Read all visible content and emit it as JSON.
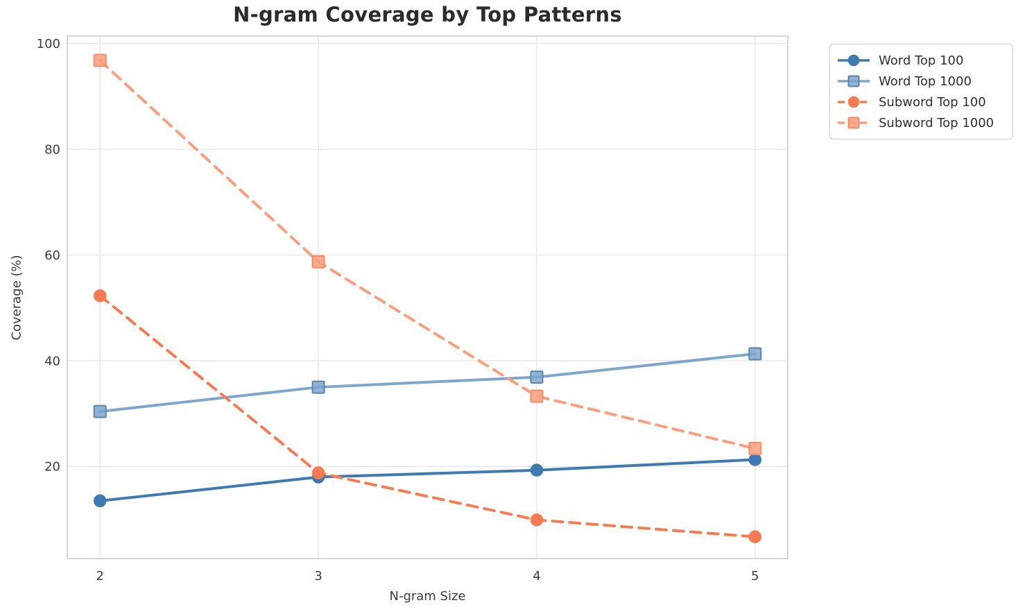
{
  "page": {
    "title": "N-gram Coverage by Top Patterns"
  },
  "chart_data": {
    "type": "line",
    "title": "N-gram Coverage by Top Patterns",
    "xlabel": "N-gram Size",
    "ylabel": "Coverage (%)",
    "x": [
      2,
      3,
      4,
      5
    ],
    "x_tick_labels": [
      "2",
      "3",
      "4",
      "5"
    ],
    "y_ticks": [
      20,
      40,
      60,
      80,
      100
    ],
    "xlim": [
      1.85,
      5.15
    ],
    "ylim": [
      2.6,
      101.4
    ],
    "grid": true,
    "legend_position": "upper-right-outside",
    "series": [
      {
        "name": "Word Top 100",
        "values": [
          13.5,
          18.0,
          19.3,
          21.3
        ],
        "color": "#3e7ab1",
        "line_style": "solid",
        "marker": "circle",
        "marker_edge": "#3e7ab1"
      },
      {
        "name": "Word Top 1000",
        "values": [
          30.4,
          35.0,
          36.9,
          41.3
        ],
        "color": "#7ea6cd",
        "line_style": "solid",
        "marker": "square",
        "marker_edge": "#5884ae"
      },
      {
        "name": "Subword Top 100",
        "values": [
          52.3,
          18.8,
          9.9,
          6.7
        ],
        "color": "#f87a50",
        "line_style": "dashed",
        "marker": "circle",
        "marker_edge": "#f87a50"
      },
      {
        "name": "Subword Top 1000",
        "values": [
          96.8,
          58.7,
          33.3,
          23.4
        ],
        "color": "#fa9e7d",
        "line_style": "dashed",
        "marker": "square",
        "marker_edge": "#f88b62"
      }
    ]
  },
  "colors": {
    "background": "#ffffff",
    "grid": "#e7e7ea",
    "spine": "#cccccf",
    "tick_text": "#3c3c3c",
    "title_text": "#2b2b2b",
    "legend_border": "#cccccc",
    "legend_bg": "#ffffff"
  }
}
